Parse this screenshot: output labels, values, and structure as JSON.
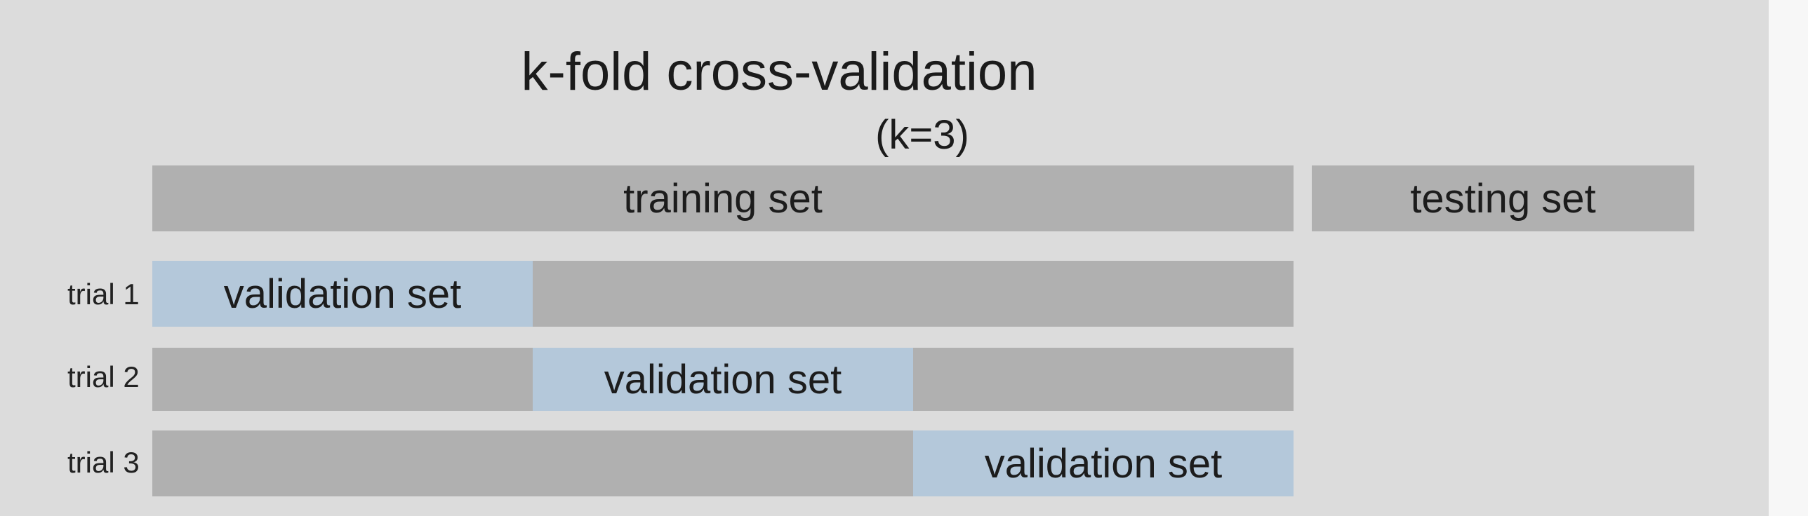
{
  "title": "k-fold cross-validation",
  "subtitle": "(k=3)",
  "top_bars": {
    "training": "training set",
    "testing": "testing set"
  },
  "trials": [
    {
      "label": "trial 1",
      "validation_label": "validation set",
      "fold": 1
    },
    {
      "label": "trial 2",
      "validation_label": "validation set",
      "fold": 2
    },
    {
      "label": "trial 3",
      "validation_label": "validation set",
      "fold": 3
    }
  ],
  "k": 3,
  "colors": {
    "background": "#dcdcdc",
    "bar_gray": "#b0b0b0",
    "validation_blue": "#b4c8da",
    "text": "#1c1c1c"
  }
}
